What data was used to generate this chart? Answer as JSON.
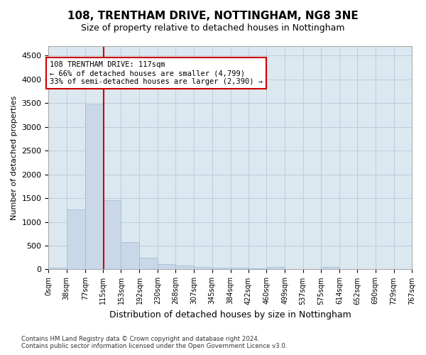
{
  "title": "108, TRENTHAM DRIVE, NOTTINGHAM, NG8 3NE",
  "subtitle": "Size of property relative to detached houses in Nottingham",
  "xlabel": "Distribution of detached houses by size in Nottingham",
  "ylabel": "Number of detached properties",
  "bin_edges": [
    0,
    38,
    77,
    115,
    153,
    192,
    230,
    268,
    307,
    345,
    384,
    422,
    460,
    499,
    537,
    575,
    614,
    652,
    690,
    729,
    767
  ],
  "bar_heights": [
    40,
    1260,
    3480,
    1460,
    575,
    240,
    115,
    80,
    55,
    40,
    30,
    25,
    50,
    0,
    0,
    50,
    0,
    0,
    0,
    0
  ],
  "bar_color": "#c8d8e8",
  "bar_edge_color": "#a0b8cc",
  "property_size": 117,
  "red_line_color": "#cc0000",
  "annotation_text": "108 TRENTHAM DRIVE: 117sqm\n← 66% of detached houses are smaller (4,799)\n33% of semi-detached houses are larger (2,390) →",
  "annotation_box_color": "#ffffff",
  "annotation_box_edge": "#cc0000",
  "ylim_max": 4700,
  "yticks": [
    0,
    500,
    1000,
    1500,
    2000,
    2500,
    3000,
    3500,
    4000,
    4500
  ],
  "footer_line1": "Contains HM Land Registry data © Crown copyright and database right 2024.",
  "footer_line2": "Contains public sector information licensed under the Open Government Licence v3.0.",
  "bg_color": "#ffffff",
  "plot_bg_color": "#dce8f0",
  "grid_color": "#b0c4d4",
  "tick_labels": [
    "0sqm",
    "38sqm",
    "77sqm",
    "115sqm",
    "153sqm",
    "192sqm",
    "230sqm",
    "268sqm",
    "307sqm",
    "345sqm",
    "384sqm",
    "422sqm",
    "460sqm",
    "499sqm",
    "537sqm",
    "575sqm",
    "614sqm",
    "652sqm",
    "690sqm",
    "729sqm",
    "767sqm"
  ]
}
